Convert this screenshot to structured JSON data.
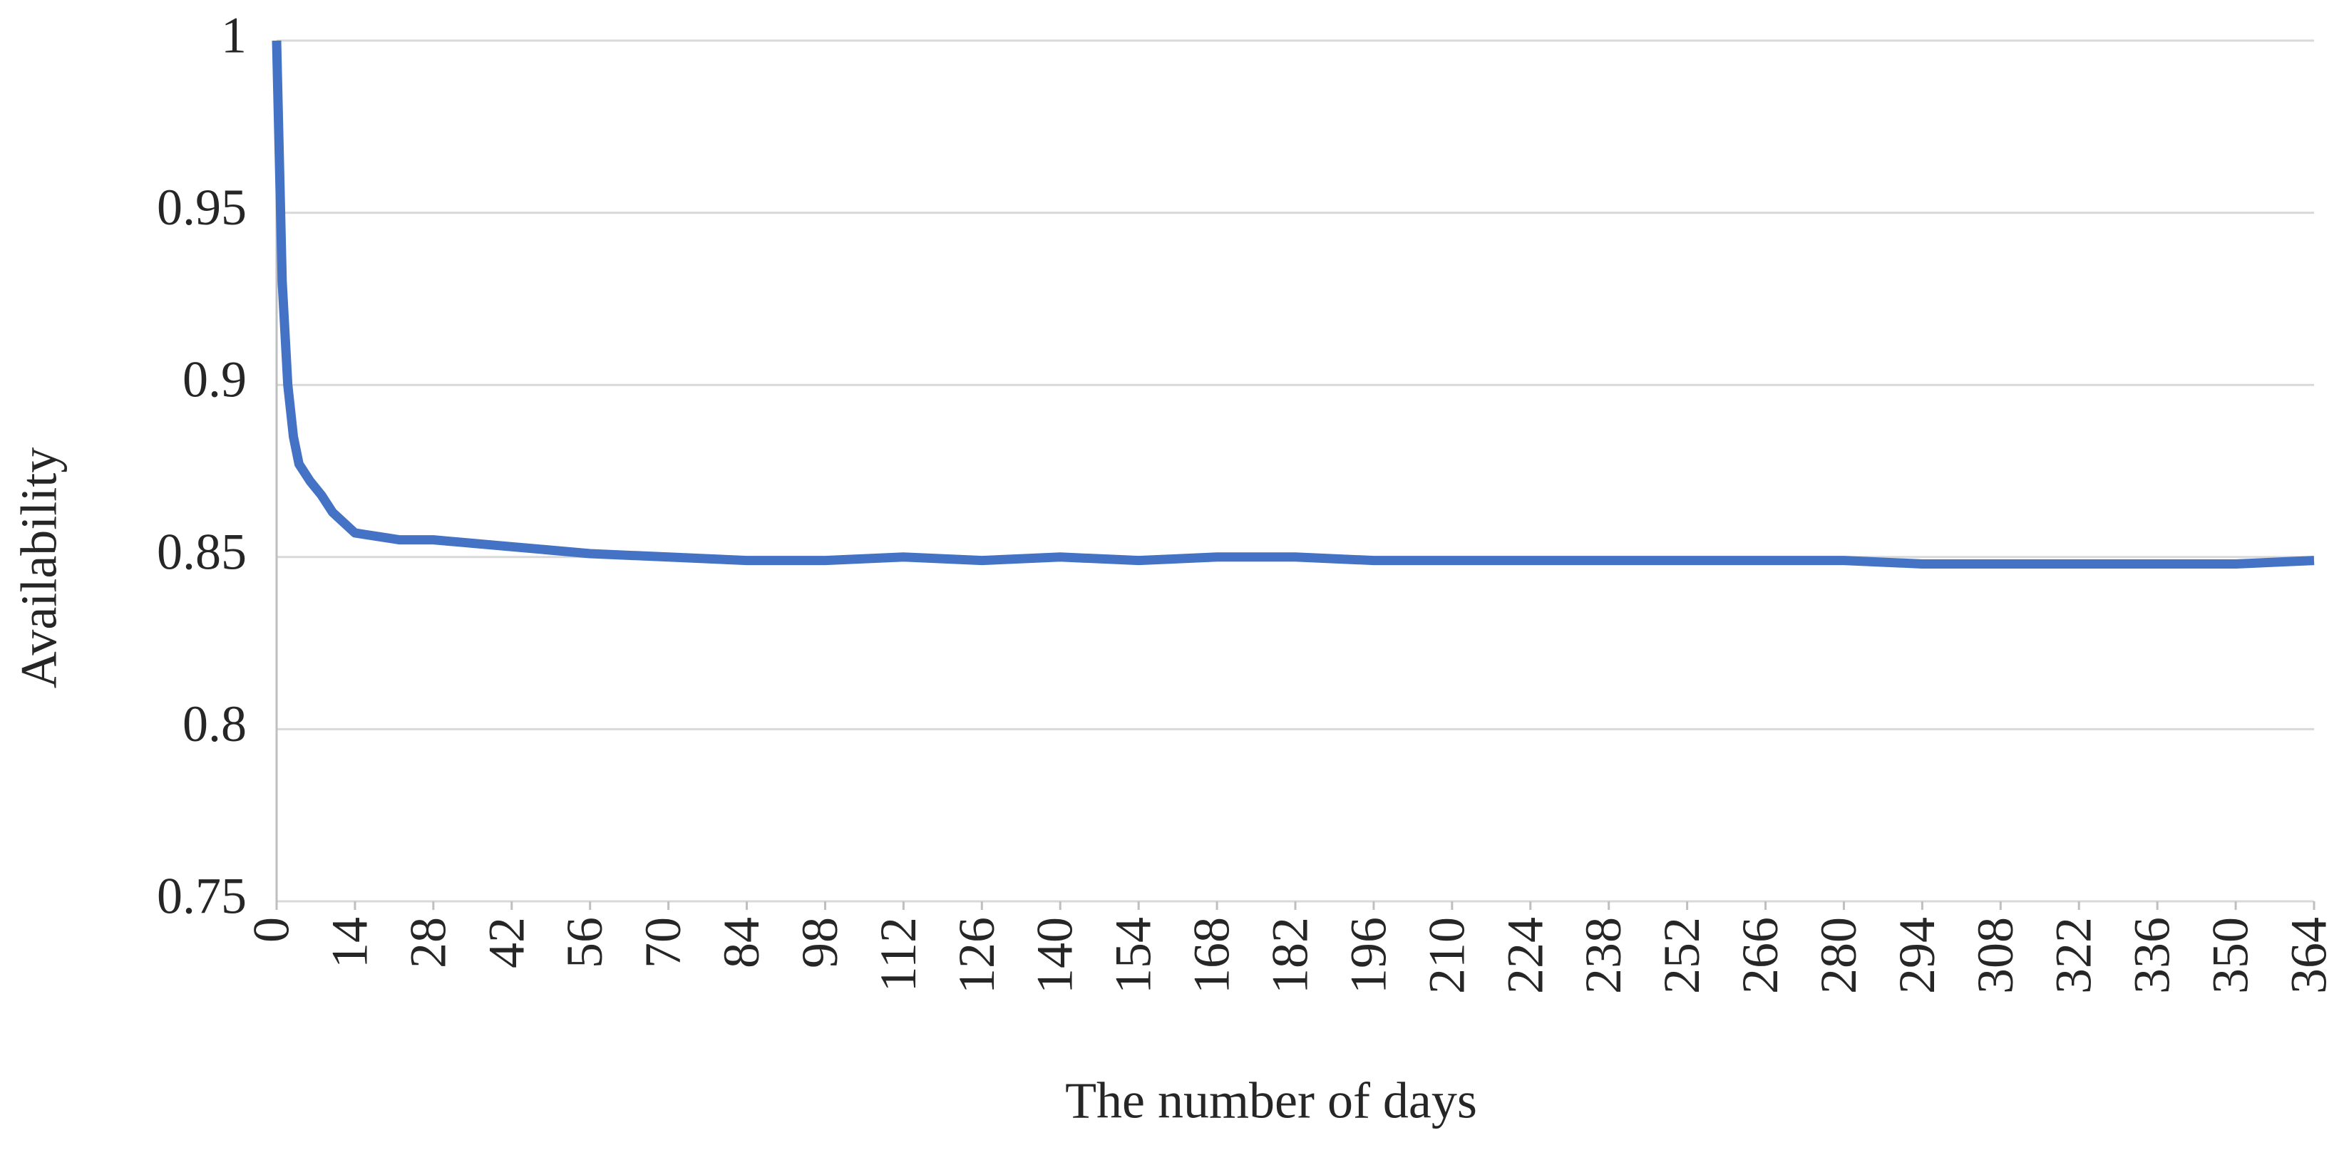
{
  "chart_data": {
    "type": "line",
    "x_label": "The number of days",
    "y_label": "Availability",
    "xlim": [
      0,
      364
    ],
    "xticks": [
      0,
      14,
      28,
      42,
      56,
      70,
      84,
      98,
      112,
      126,
      140,
      154,
      168,
      182,
      196,
      210,
      224,
      238,
      252,
      266,
      280,
      294,
      308,
      322,
      336,
      350,
      364
    ],
    "ylim": [
      0.75,
      1
    ],
    "yticks": [
      0.75,
      0.8,
      0.85,
      0.9,
      0.95,
      1
    ],
    "grid": true,
    "x": [
      0,
      1,
      2,
      3,
      4,
      6,
      8,
      10,
      12,
      14,
      18,
      22,
      28,
      42,
      56,
      70,
      84,
      98,
      112,
      126,
      140,
      154,
      168,
      182,
      196,
      210,
      224,
      238,
      252,
      266,
      280,
      294,
      308,
      322,
      336,
      350,
      364
    ],
    "series": [
      {
        "name": "Availability",
        "color": "#4472c4",
        "values": [
          1.0,
          0.93,
          0.9,
          0.885,
          0.877,
          0.872,
          0.868,
          0.863,
          0.86,
          0.857,
          0.856,
          0.855,
          0.855,
          0.853,
          0.851,
          0.85,
          0.849,
          0.849,
          0.85,
          0.849,
          0.85,
          0.849,
          0.85,
          0.85,
          0.849,
          0.849,
          0.849,
          0.849,
          0.849,
          0.849,
          0.849,
          0.848,
          0.848,
          0.848,
          0.848,
          0.848,
          0.849
        ]
      }
    ]
  }
}
